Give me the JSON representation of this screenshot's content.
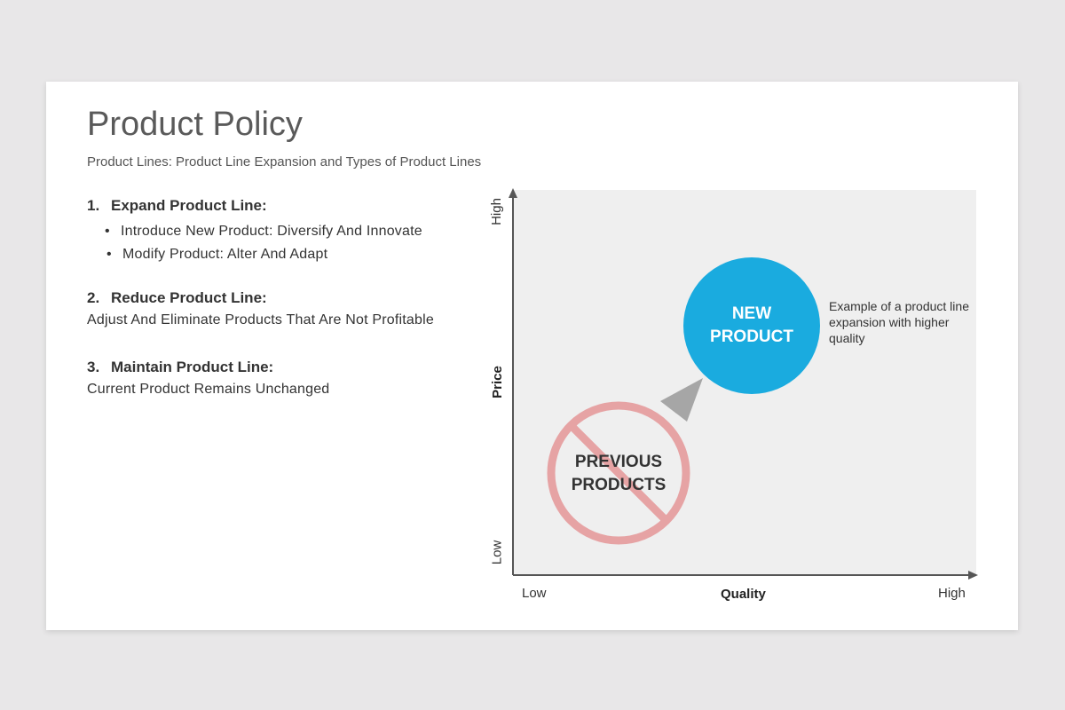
{
  "slide": {
    "title": "Product Policy",
    "subtitle": "Product Lines: Product Line Expansion and Types of Product Lines"
  },
  "sections": [
    {
      "number": "1.",
      "heading": "Expand Product Line:",
      "bullets": [
        "Introduce New Product: Diversify And Innovate",
        "Modify Product: Alter And Adapt"
      ]
    },
    {
      "number": "2.",
      "heading": "Reduce Product Line:",
      "text": "Adjust And Eliminate Products That Are Not Profitable"
    },
    {
      "number": "3.",
      "heading": "Maintain Product Line:",
      "text": "Current Product Remains Unchanged"
    }
  ],
  "diagram": {
    "y_axis": {
      "title": "Price",
      "low": "Low",
      "high": "High"
    },
    "x_axis": {
      "title": "Quality",
      "low": "Low",
      "high": "High"
    },
    "new_product": {
      "line1": "NEW",
      "line2": "PRODUCT",
      "color": "#1aabdf"
    },
    "previous_products": {
      "line1": "PREVIOUS",
      "line2": "PRODUCTS",
      "symbol": "prohibited-icon",
      "color": "#e6a3a4"
    },
    "note": "Example of a product line expansion with higher quality",
    "arrow_color": "#a6a6a6"
  }
}
